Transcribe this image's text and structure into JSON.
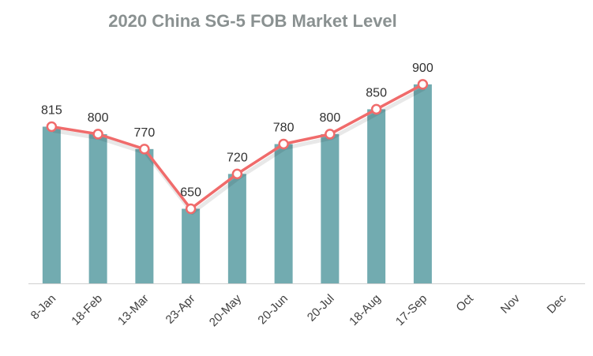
{
  "chart_data": {
    "type": "bar+line",
    "title": "2020 China SG-5 FOB Market Level",
    "categories": [
      "8-Jan",
      "18-Feb",
      "13-Mar",
      "23-Apr",
      "20-May",
      "20-Jun",
      "20-Jul",
      "18-Aug",
      "17-Sep",
      "Oct",
      "Nov",
      "Dec"
    ],
    "series": [
      {
        "type": "bar",
        "values": [
          815,
          800,
          770,
          650,
          720,
          780,
          800,
          850,
          900,
          null,
          null,
          null
        ],
        "color": "#72abb0"
      },
      {
        "type": "line",
        "values": [
          815,
          800,
          770,
          650,
          720,
          780,
          800,
          850,
          900,
          null,
          null,
          null
        ],
        "color": "#f06b6b",
        "marker": "circle-open"
      }
    ],
    "data_labels": [
      "815",
      "800",
      "770",
      "650",
      "720",
      "780",
      "800",
      "850",
      "900"
    ],
    "ylim": [
      500,
      930
    ],
    "y_axis_visible": false,
    "grid": false,
    "legend": "none"
  }
}
